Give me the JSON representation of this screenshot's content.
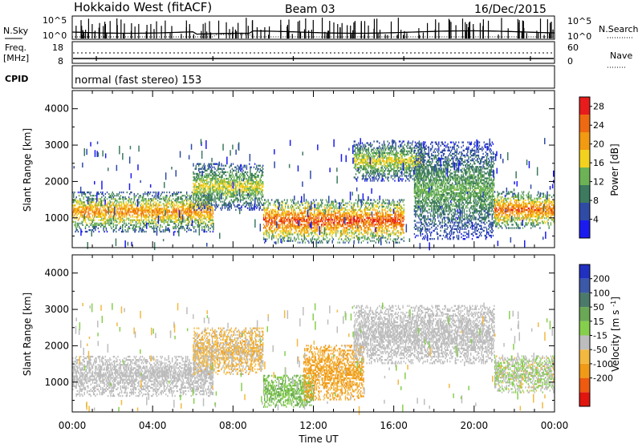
{
  "header": {
    "station": "Hokkaido West (fitACF)",
    "beam": "Beam 03",
    "date": "16/Dec/2015"
  },
  "status_panels": {
    "nsky_label": "N.Sky",
    "nsky_ticks": [
      "10^5",
      "10^0"
    ],
    "nsearch_label": "N.Search",
    "nsearch_ticks": [
      "10^5",
      "10^0"
    ],
    "freq_label": "Freq.",
    "freq_unit": "[MHz]",
    "freq_ticks": [
      "18",
      "8"
    ],
    "nave_label": "Nave",
    "nave_ticks": [
      "60",
      "0"
    ],
    "cpid_label": "CPID",
    "cpid_text": "normal (fast stereo) 153"
  },
  "colors": {
    "power_scale": [
      "#1b1bf0",
      "#2f4ba6",
      "#3d7a5f",
      "#6db356",
      "#f3d21f",
      "#f29a12",
      "#ed6a12",
      "#e81c1c"
    ],
    "velocity_scale": [
      "#e0160f",
      "#ed5a10",
      "#f09a18",
      "#f3b840",
      "#bdbdbd",
      "#86cf4c",
      "#6aa855",
      "#4c7a6a",
      "#3c58a8",
      "#2030c0"
    ]
  },
  "chart_data": [
    {
      "type": "heatmap",
      "name": "power",
      "xlabel": "Time UT",
      "ylabel": "Slant Range [km]",
      "xlim": [
        0,
        24
      ],
      "ylim": [
        180,
        4500
      ],
      "x_ticks": [
        "00:00",
        "04:00",
        "08:00",
        "12:00",
        "16:00",
        "20:00",
        "00:00"
      ],
      "y_ticks": [
        "1000",
        "2000",
        "3000",
        "4000"
      ],
      "colorbar": {
        "label": "Power [dB]",
        "ticks": [
          "4",
          "8",
          "12",
          "16",
          "20",
          "24",
          "28"
        ],
        "range": [
          0,
          30
        ]
      },
      "echo_regions": [
        {
          "t": [
            0,
            7
          ],
          "range_km": [
            600,
            1700
          ],
          "power_db": [
            2,
            24
          ]
        },
        {
          "t": [
            6,
            9.5
          ],
          "range_km": [
            1200,
            2500
          ],
          "power_db": [
            2,
            18
          ]
        },
        {
          "t": [
            9.5,
            16.5
          ],
          "range_km": [
            300,
            1500
          ],
          "power_db": [
            4,
            28
          ]
        },
        {
          "t": [
            14,
            17.5
          ],
          "range_km": [
            2000,
            3100
          ],
          "power_db": [
            2,
            18
          ]
        },
        {
          "t": [
            17,
            21
          ],
          "range_km": [
            400,
            3100
          ],
          "power_db": [
            2,
            14
          ]
        },
        {
          "t": [
            21,
            24
          ],
          "range_km": [
            700,
            1700
          ],
          "power_db": [
            4,
            26
          ]
        }
      ]
    },
    {
      "type": "heatmap",
      "name": "velocity",
      "xlabel": "Time UT",
      "ylabel": "Slant Range [km]",
      "xlim": [
        0,
        24
      ],
      "ylim": [
        180,
        4500
      ],
      "x_ticks": [
        "00:00",
        "04:00",
        "08:00",
        "12:00",
        "16:00",
        "20:00",
        "00:00"
      ],
      "y_ticks": [
        "1000",
        "2000",
        "3000",
        "4000"
      ],
      "colorbar": {
        "label": "Velocity [m s^-1]",
        "ticks": [
          "200",
          "100",
          "50",
          "15",
          "-15",
          "-50",
          "-100",
          "-200"
        ],
        "range": [
          -250,
          250
        ]
      },
      "echo_regions": [
        {
          "t": [
            0,
            7
          ],
          "range_km": [
            600,
            1700
          ],
          "velocity": [
            -15,
            15
          ]
        },
        {
          "t": [
            6,
            9.5
          ],
          "range_km": [
            1200,
            2500
          ],
          "velocity": [
            -60,
            10
          ]
        },
        {
          "t": [
            9.5,
            12
          ],
          "range_km": [
            300,
            1200
          ],
          "velocity": [
            15,
            80
          ]
        },
        {
          "t": [
            11.5,
            14.5
          ],
          "range_km": [
            500,
            2000
          ],
          "velocity": [
            -90,
            -30
          ]
        },
        {
          "t": [
            14,
            21
          ],
          "range_km": [
            1500,
            3100
          ],
          "velocity": [
            -15,
            15
          ]
        },
        {
          "t": [
            21,
            24
          ],
          "range_km": [
            700,
            1700
          ],
          "velocity": [
            -20,
            40
          ]
        }
      ]
    }
  ]
}
